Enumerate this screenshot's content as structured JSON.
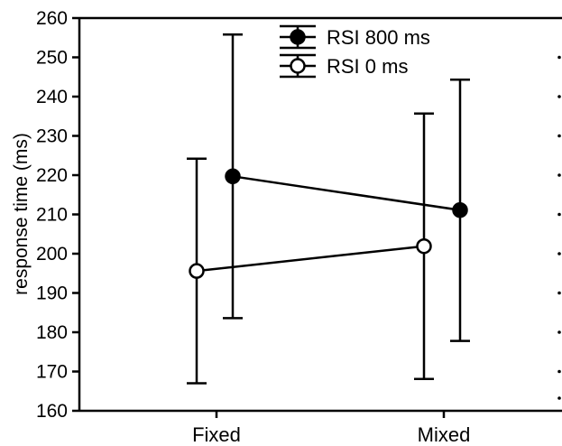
{
  "chart_data": {
    "type": "line",
    "categories": [
      "Fixed",
      "Mixed"
    ],
    "ylabel": "response time (ms)",
    "xlabel": "",
    "ylim": [
      160,
      260
    ],
    "yticks": [
      160,
      170,
      180,
      190,
      200,
      210,
      220,
      230,
      240,
      250,
      260
    ],
    "grid": false,
    "legend_position": "top-center",
    "series": [
      {
        "name": "RSI 800 ms",
        "marker": "filled-circle",
        "values": [
          219.7,
          211.1
        ],
        "error_low": [
          183.6,
          177.8
        ],
        "error_high": [
          255.8,
          244.3
        ]
      },
      {
        "name": "RSI 0 ms",
        "marker": "open-circle",
        "values": [
          195.6,
          201.9
        ],
        "error_low": [
          167.0,
          168.1
        ],
        "error_high": [
          224.2,
          235.7
        ]
      }
    ],
    "colors": {
      "line": "#000000",
      "background": "#ffffff"
    }
  }
}
